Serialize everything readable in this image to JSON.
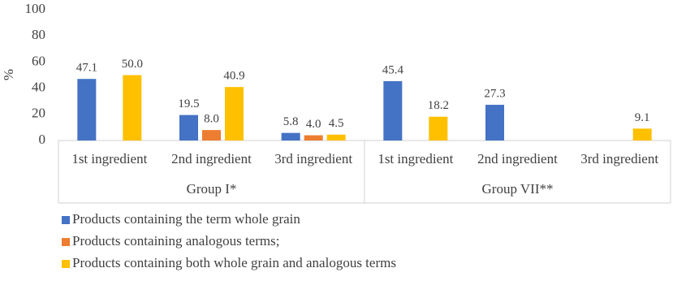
{
  "chart_data": {
    "type": "bar",
    "y_label": "%",
    "categories": [
      "1st ingredient",
      "2nd ingredient",
      "3rd ingredient",
      "1st ingredient",
      "2nd ingredient",
      "3rd ingredient"
    ],
    "groups": [
      "Group I*",
      "Group VII**"
    ],
    "series": [
      {
        "name": "Products containing the term whole grain",
        "color": "#4472c4",
        "values": [
          47.1,
          19.5,
          5.8,
          45.4,
          27.3,
          null
        ],
        "value_labels": [
          "47.1",
          "19.5",
          "5.8",
          "45.4",
          "27.3",
          null
        ]
      },
      {
        "name": "Products containing analogous terms;",
        "color": "#ed7d31",
        "values": [
          null,
          8,
          4,
          null,
          null,
          null
        ],
        "value_labels": [
          null,
          "8.0",
          "4.0",
          null,
          null,
          null
        ]
      },
      {
        "name": "Products containing both whole grain and analogous terms",
        "color": "#ffc000",
        "values": [
          50,
          40.9,
          4.5,
          18.2,
          null,
          9.1
        ],
        "value_labels": [
          "50.0",
          "40.9",
          "4.5",
          "18.2",
          null,
          "9.1"
        ]
      }
    ],
    "ylim": [
      0,
      100
    ],
    "yticks": [
      0,
      20,
      40,
      60,
      80,
      100
    ],
    "grid": false,
    "legend": "bottom"
  }
}
